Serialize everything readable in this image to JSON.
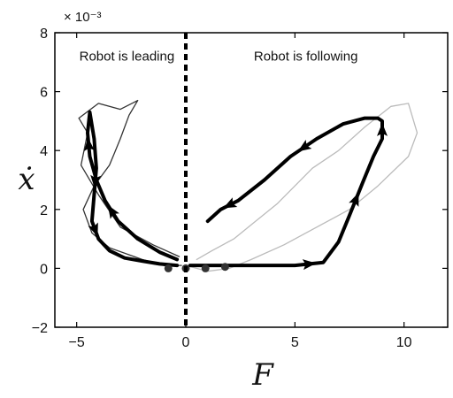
{
  "chart_data": {
    "type": "line",
    "title": "",
    "xlabel": "F",
    "ylabel": "ẋ",
    "y_multiplier_label": "× 10⁻³",
    "xlim": [
      -6,
      12
    ],
    "ylim": [
      -2,
      8
    ],
    "x_ticks": [
      -5,
      0,
      5,
      10
    ],
    "x_tick_labels": [
      "−5",
      "0",
      "5",
      "10"
    ],
    "y_ticks": [
      -2,
      0,
      2,
      4,
      6,
      8
    ],
    "y_tick_labels": [
      "−2",
      "0",
      "2",
      "4",
      "6",
      "8"
    ],
    "divider_x": 0,
    "annotations": [
      {
        "text": "Robot is leading",
        "x": -2.7,
        "y": 7.2
      },
      {
        "text": "Robot is following",
        "x": 5.5,
        "y": 7.2
      }
    ],
    "series": [
      {
        "role": "mean-trajectory-leading",
        "color": "#000000",
        "x": [
          -0.4,
          -1.2,
          -2.2,
          -3.1,
          -3.7,
          -4.1,
          -4.4,
          -4.5,
          -4.4,
          -4.2,
          -4.1,
          -4.2,
          -4.3,
          -4.0,
          -3.5,
          -2.8,
          -2.0,
          -1.2,
          -0.4
        ],
        "y": [
          0.3,
          0.55,
          1.0,
          1.6,
          2.3,
          3.0,
          3.8,
          4.6,
          5.3,
          4.4,
          3.4,
          2.5,
          1.6,
          1.0,
          0.6,
          0.35,
          0.25,
          0.15,
          0.1
        ],
        "arrows_at": [
          3,
          6,
          10,
          12
        ]
      },
      {
        "role": "mean-trajectory-following",
        "color": "#000000",
        "x": [
          0.2,
          2.0,
          3.5,
          5.0,
          6.3,
          7.0,
          7.5,
          8.1,
          8.6,
          9.0,
          9.0,
          8.8,
          8.2,
          7.2,
          6.0,
          4.8,
          3.6,
          2.4,
          1.6,
          1.0
        ],
        "y": [
          0.1,
          0.1,
          0.1,
          0.1,
          0.2,
          0.9,
          1.8,
          2.9,
          3.8,
          4.4,
          5.0,
          5.1,
          5.1,
          4.9,
          4.4,
          3.8,
          3.0,
          2.3,
          2.0,
          1.6
        ],
        "arrows_at": [
          3,
          6,
          9,
          14,
          17
        ]
      },
      {
        "role": "raw-trials-leading",
        "color": "#333333",
        "x": [
          -0.3,
          -1.5,
          -3.0,
          -4.0,
          -4.8,
          -4.5,
          -4.9,
          -4.0,
          -3.0,
          -2.2,
          -2.6,
          -3.0,
          -3.5,
          -4.2,
          -4.7,
          -4.3,
          -3.5,
          -2.0,
          -1.0,
          -0.2
        ],
        "y": [
          0.4,
          0.8,
          1.4,
          2.5,
          3.5,
          4.6,
          5.1,
          5.6,
          5.4,
          5.7,
          5.2,
          4.4,
          3.5,
          2.8,
          2.0,
          1.2,
          0.7,
          0.3,
          0.1,
          0.1
        ]
      },
      {
        "role": "raw-trials-following",
        "color": "#bbbbbb",
        "x": [
          0.0,
          1.0,
          2.0,
          3.0,
          4.5,
          6.0,
          7.5,
          8.8,
          10.2,
          10.6,
          10.2,
          9.4,
          8.2,
          7.0,
          5.8,
          5.0,
          4.2,
          3.2,
          2.2,
          1.2,
          0.5
        ],
        "y": [
          0.1,
          -0.1,
          0.0,
          0.3,
          0.8,
          1.4,
          2.0,
          2.8,
          3.8,
          4.6,
          5.6,
          5.5,
          4.8,
          4.0,
          3.4,
          2.8,
          2.2,
          1.6,
          1.0,
          0.6,
          0.3
        ]
      }
    ],
    "endpoints": {
      "x": [
        -0.8,
        0.0,
        0.9,
        1.8
      ],
      "y": [
        0.0,
        0.0,
        0.0,
        0.05
      ]
    }
  }
}
